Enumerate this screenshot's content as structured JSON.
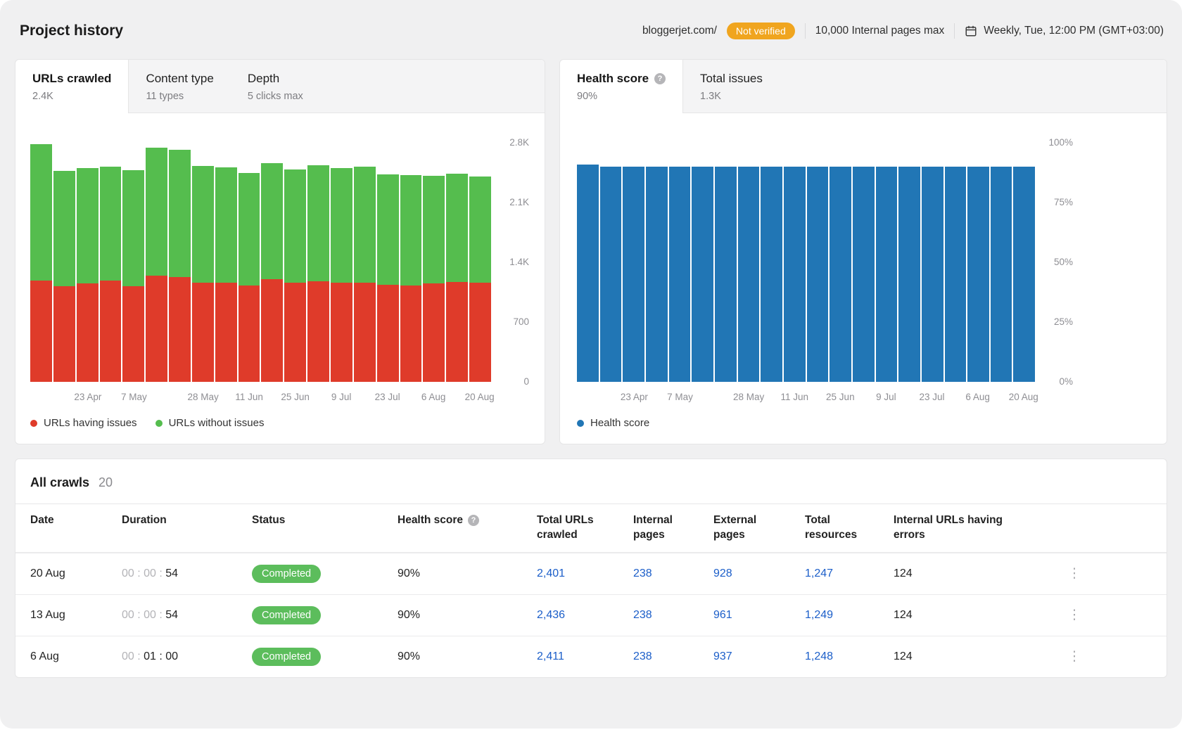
{
  "header": {
    "title": "Project history",
    "domain": "bloggerjet.com/",
    "badge": "Not verified",
    "pages_limit": "10,000 Internal pages max",
    "schedule": "Weekly, Tue, 12:00 PM (GMT+03:00)"
  },
  "icons": {
    "help_glyph": "?",
    "kebab_glyph": "⋮",
    "calendar": "calendar-icon"
  },
  "colors": {
    "red": "#df3b2a",
    "green": "#55bd4e",
    "blue": "#2176b5",
    "badge_orange": "#f0a51f",
    "pill_green": "#5cbd5c",
    "link_blue": "#1b5ec9"
  },
  "urls_card": {
    "tabs": [
      {
        "title": "URLs crawled",
        "subtitle": "2.4K"
      },
      {
        "title": "Content type",
        "subtitle": "11 types"
      },
      {
        "title": "Depth",
        "subtitle": "5 clicks max"
      }
    ]
  },
  "health_card": {
    "tabs": [
      {
        "title": "Health score",
        "subtitle": "90%",
        "has_help": true
      },
      {
        "title": "Total issues",
        "subtitle": "1.3K"
      }
    ]
  },
  "chart_data": [
    {
      "id": "urls-crawled",
      "type": "bar",
      "stacked": true,
      "title": "URLs crawled",
      "num_bars": 20,
      "ylim": [
        0,
        2800
      ],
      "y_ticks": [
        "2.8K",
        "2.1K",
        "1.4K",
        "700",
        "0"
      ],
      "x_ticks": [
        {
          "index": 2,
          "label": "23 Apr"
        },
        {
          "index": 4,
          "label": "7 May"
        },
        {
          "index": 7,
          "label": "28 May"
        },
        {
          "index": 9,
          "label": "11 Jun"
        },
        {
          "index": 11,
          "label": "25 Jun"
        },
        {
          "index": 13,
          "label": "9 Jul"
        },
        {
          "index": 15,
          "label": "23 Jul"
        },
        {
          "index": 17,
          "label": "6 Aug"
        },
        {
          "index": 19,
          "label": "20 Aug"
        }
      ],
      "series": [
        {
          "name": "URLs having issues",
          "color": "#df3b2a",
          "values": [
            1190,
            1120,
            1150,
            1190,
            1120,
            1240,
            1230,
            1160,
            1160,
            1130,
            1200,
            1160,
            1180,
            1160,
            1160,
            1140,
            1130,
            1150,
            1170,
            1160
          ]
        },
        {
          "name": "URLs without issues",
          "color": "#55bd4e",
          "values": [
            1590,
            1350,
            1350,
            1330,
            1360,
            1500,
            1490,
            1370,
            1350,
            1320,
            1360,
            1330,
            1360,
            1340,
            1360,
            1290,
            1290,
            1261,
            1266,
            1241
          ]
        }
      ]
    },
    {
      "id": "health-score",
      "type": "bar",
      "stacked": false,
      "title": "Health score",
      "num_bars": 20,
      "ylim": [
        0,
        100
      ],
      "y_ticks": [
        "100%",
        "75%",
        "50%",
        "25%",
        "0%"
      ],
      "x_ticks": [
        {
          "index": 2,
          "label": "23 Apr"
        },
        {
          "index": 4,
          "label": "7 May"
        },
        {
          "index": 7,
          "label": "28 May"
        },
        {
          "index": 9,
          "label": "11 Jun"
        },
        {
          "index": 11,
          "label": "25 Jun"
        },
        {
          "index": 13,
          "label": "9 Jul"
        },
        {
          "index": 15,
          "label": "23 Jul"
        },
        {
          "index": 17,
          "label": "6 Aug"
        },
        {
          "index": 19,
          "label": "20 Aug"
        }
      ],
      "series": [
        {
          "name": "Health score",
          "color": "#2176b5",
          "values": [
            91,
            90,
            90,
            90,
            90,
            90,
            90,
            90,
            90,
            90,
            90,
            90,
            90,
            90,
            90,
            90,
            90,
            90,
            90,
            90
          ]
        }
      ]
    }
  ],
  "crawls": {
    "title": "All crawls",
    "count": "20",
    "columns": [
      {
        "label": "Date"
      },
      {
        "label": "Duration"
      },
      {
        "label": "Status"
      },
      {
        "label": "Health score",
        "has_help": true
      },
      {
        "label": "Total URLs crawled"
      },
      {
        "label": "Internal pages"
      },
      {
        "label": "External pages"
      },
      {
        "label": "Total resources"
      },
      {
        "label": "Internal URLs having errors"
      }
    ],
    "rows": [
      {
        "date": "20 Aug",
        "duration_muted": "00 : 00 : ",
        "duration_strong": "54",
        "status": "Completed",
        "health_score": "90%",
        "total_urls": "2,401",
        "internal_pages": "238",
        "external_pages": "928",
        "total_resources": "1,247",
        "internal_errors": "124"
      },
      {
        "date": "13 Aug",
        "duration_muted": "00 : 00 : ",
        "duration_strong": "54",
        "status": "Completed",
        "health_score": "90%",
        "total_urls": "2,436",
        "internal_pages": "238",
        "external_pages": "961",
        "total_resources": "1,249",
        "internal_errors": "124"
      },
      {
        "date": "6 Aug",
        "duration_muted": "00 : ",
        "duration_strong": "01 : 00",
        "status": "Completed",
        "health_score": "90%",
        "total_urls": "2,411",
        "internal_pages": "238",
        "external_pages": "937",
        "total_resources": "1,248",
        "internal_errors": "124"
      }
    ]
  }
}
